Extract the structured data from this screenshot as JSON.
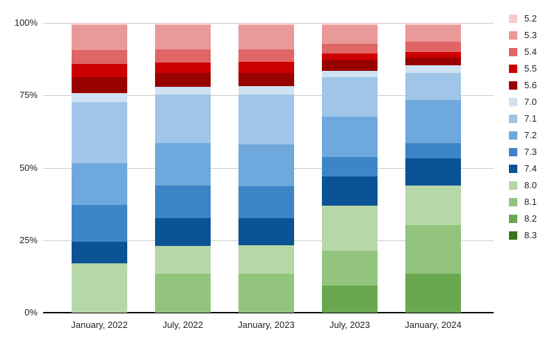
{
  "chart_data": {
    "type": "bar",
    "stacked": true,
    "percentage": true,
    "title": "",
    "xlabel": "",
    "ylabel": "",
    "ylim": [
      0,
      100
    ],
    "grid": true,
    "legend_position": "right",
    "y_ticks": [
      "100%",
      "75%",
      "50%",
      "25%",
      "0%"
    ],
    "categories": [
      "January, 2022",
      "July, 2022",
      "January, 2023",
      "July, 2023",
      "January, 2024"
    ],
    "series": [
      {
        "name": "5.2",
        "color": "#f4cccc",
        "values": [
          0.5,
          0.5,
          0.5,
          0.6,
          0.6
        ]
      },
      {
        "name": "5.3",
        "color": "#ea9999",
        "values": [
          8.8,
          8.6,
          8.6,
          6.6,
          5.9
        ]
      },
      {
        "name": "5.4",
        "color": "#e06666",
        "values": [
          4.8,
          4.4,
          4.2,
          3.4,
          3.6
        ]
      },
      {
        "name": "5.5",
        "color": "#cc0000",
        "values": [
          4.6,
          3.6,
          3.8,
          2.2,
          1.8
        ]
      },
      {
        "name": "5.6",
        "color": "#990000",
        "values": [
          5.5,
          4.8,
          4.6,
          3.7,
          2.8
        ]
      },
      {
        "name": "7.0",
        "color": "#cfe2f3",
        "values": [
          3.1,
          2.8,
          3.0,
          2.1,
          2.6
        ]
      },
      {
        "name": "7.1",
        "color": "#9fc5e8",
        "values": [
          21.0,
          16.8,
          17.1,
          13.8,
          9.4
        ]
      },
      {
        "name": "7.2",
        "color": "#6fa8dc",
        "values": [
          14.4,
          14.5,
          14.4,
          14.0,
          14.8
        ]
      },
      {
        "name": "7.3",
        "color": "#3d85c6",
        "values": [
          12.8,
          11.4,
          11.2,
          6.6,
          5.2
        ]
      },
      {
        "name": "7.4",
        "color": "#0b5394",
        "values": [
          7.5,
          9.4,
          9.2,
          10.1,
          9.5
        ]
      },
      {
        "name": "8.0",
        "color": "#b6d7a8",
        "values": [
          16.9,
          9.6,
          10.0,
          15.6,
          13.6
        ]
      },
      {
        "name": "8.1",
        "color": "#93c47d",
        "values": [
          0,
          13.5,
          13.3,
          12.0,
          16.8
        ]
      },
      {
        "name": "8.2",
        "color": "#6aa84f",
        "values": [
          0,
          0,
          0,
          9.3,
          13.4
        ]
      },
      {
        "name": "8.3",
        "color": "#38761d",
        "values": [
          0,
          0,
          0,
          0,
          0
        ]
      }
    ]
  },
  "colors": {
    "background": "#ffffff",
    "gridline": "#cccccc",
    "axis": "#000000",
    "tick_label": "#222222"
  }
}
